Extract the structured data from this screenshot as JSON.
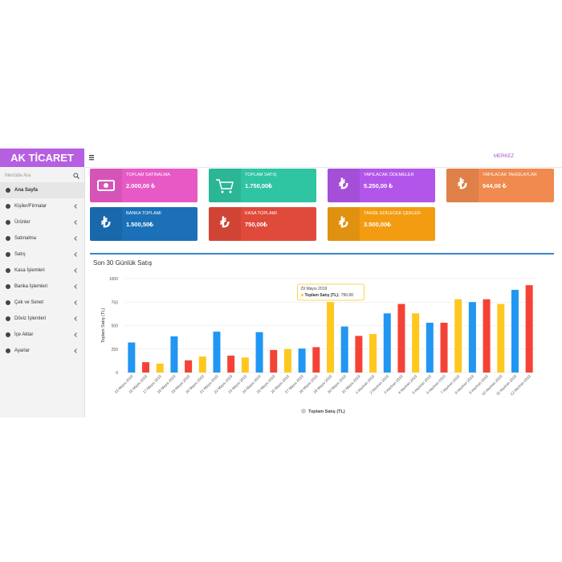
{
  "brand": "AK TİCARET",
  "location": "MERKEZ",
  "sidebar": {
    "search_placeholder": "Menüde Ara",
    "items": [
      "Ana Sayfa",
      "Kişiler/Firmalar",
      "Ürünler",
      "Satınalma",
      "Satış",
      "Kasa İşlemleri",
      "Banka İşlemleri",
      "Çek ve Senet",
      "Döviz İşlemleri",
      "İçe Aktar",
      "Ayarlar"
    ]
  },
  "cards": [
    {
      "title": "TOPLAM SATINALMA",
      "value": "2.000,00 ₺",
      "color": "#e75ac6"
    },
    {
      "title": "TOPLAM SATIŞ",
      "value": "1.750,00₺",
      "color": "#2fc4a2"
    },
    {
      "title": "YAPILACAK ÖDEMELER",
      "value": "5.250,00 ₺",
      "color": "#b256ea",
      "icon": "₺"
    },
    {
      "title": "YAPILACAK TAHSİLATLAR",
      "value": "944,00 ₺",
      "color": "#f08a4e",
      "icon": "₺"
    },
    {
      "title": "BANKA TOPLAMI",
      "value": "1.500,50₺",
      "color": "#1b70b8",
      "icon": "₺"
    },
    {
      "title": "KASA TOPLAMI",
      "value": "750,00₺",
      "color": "#e04a3b",
      "icon": "₺"
    },
    {
      "title": "TAHSİL EDİLECEK ÇEKLER",
      "value": "3.500,00₺",
      "color": "#f39c12",
      "icon": "₺"
    }
  ],
  "chart_data": {
    "type": "bar",
    "title": "Son 30 Günlük Satış",
    "y_label": "Toplam Satış (TL)",
    "categories": [
      "15 Mayıs 2019",
      "16 Mayıs 2019",
      "17 Mayıs 2019",
      "18 Mayıs 2019",
      "19 Mayıs 2019",
      "20 Mayıs 2019",
      "21 Mayıs 2019",
      "22 Mayıs 2019",
      "23 Mayıs 2019",
      "24 Mayıs 2019",
      "25 Mayıs 2019",
      "26 Mayıs 2019",
      "27 Mayıs 2019",
      "28 Mayıs 2019",
      "29 Mayıs 2019",
      "30 Mayıs 2019",
      "31 Mayıs 2019",
      "1 Haziran 2019",
      "2 Haziran 2019",
      "3 Haziran 2019",
      "4 Haziran 2019",
      "5 Haziran 2019",
      "6 Haziran 2019",
      "7 Haziran 2019",
      "8 Haziran 2019",
      "9 Haziran 2019",
      "10 Haziran 2019",
      "11 Haziran 2019",
      "12 Haziran 2019"
    ],
    "series": [
      {
        "name": "Toplam Satış (TL)",
        "colors": [
          "#2196f3",
          "#f44336",
          "#ffc81e"
        ],
        "values": [
          320,
          110,
          95,
          385,
          130,
          170,
          435,
          180,
          160,
          430,
          240,
          250,
          255,
          270,
          750,
          490,
          390,
          410,
          630,
          730,
          630,
          530,
          530,
          780,
          750,
          780,
          730,
          880,
          930
        ]
      }
    ],
    "ylim": [
      0,
      1000
    ],
    "yticks": [
      0,
      250,
      500,
      750,
      1000
    ],
    "grid": true,
    "legend": "bottom",
    "tooltip": {
      "series_label": "Toplam Satış (TL):",
      "value_label": "750,00"
    }
  }
}
